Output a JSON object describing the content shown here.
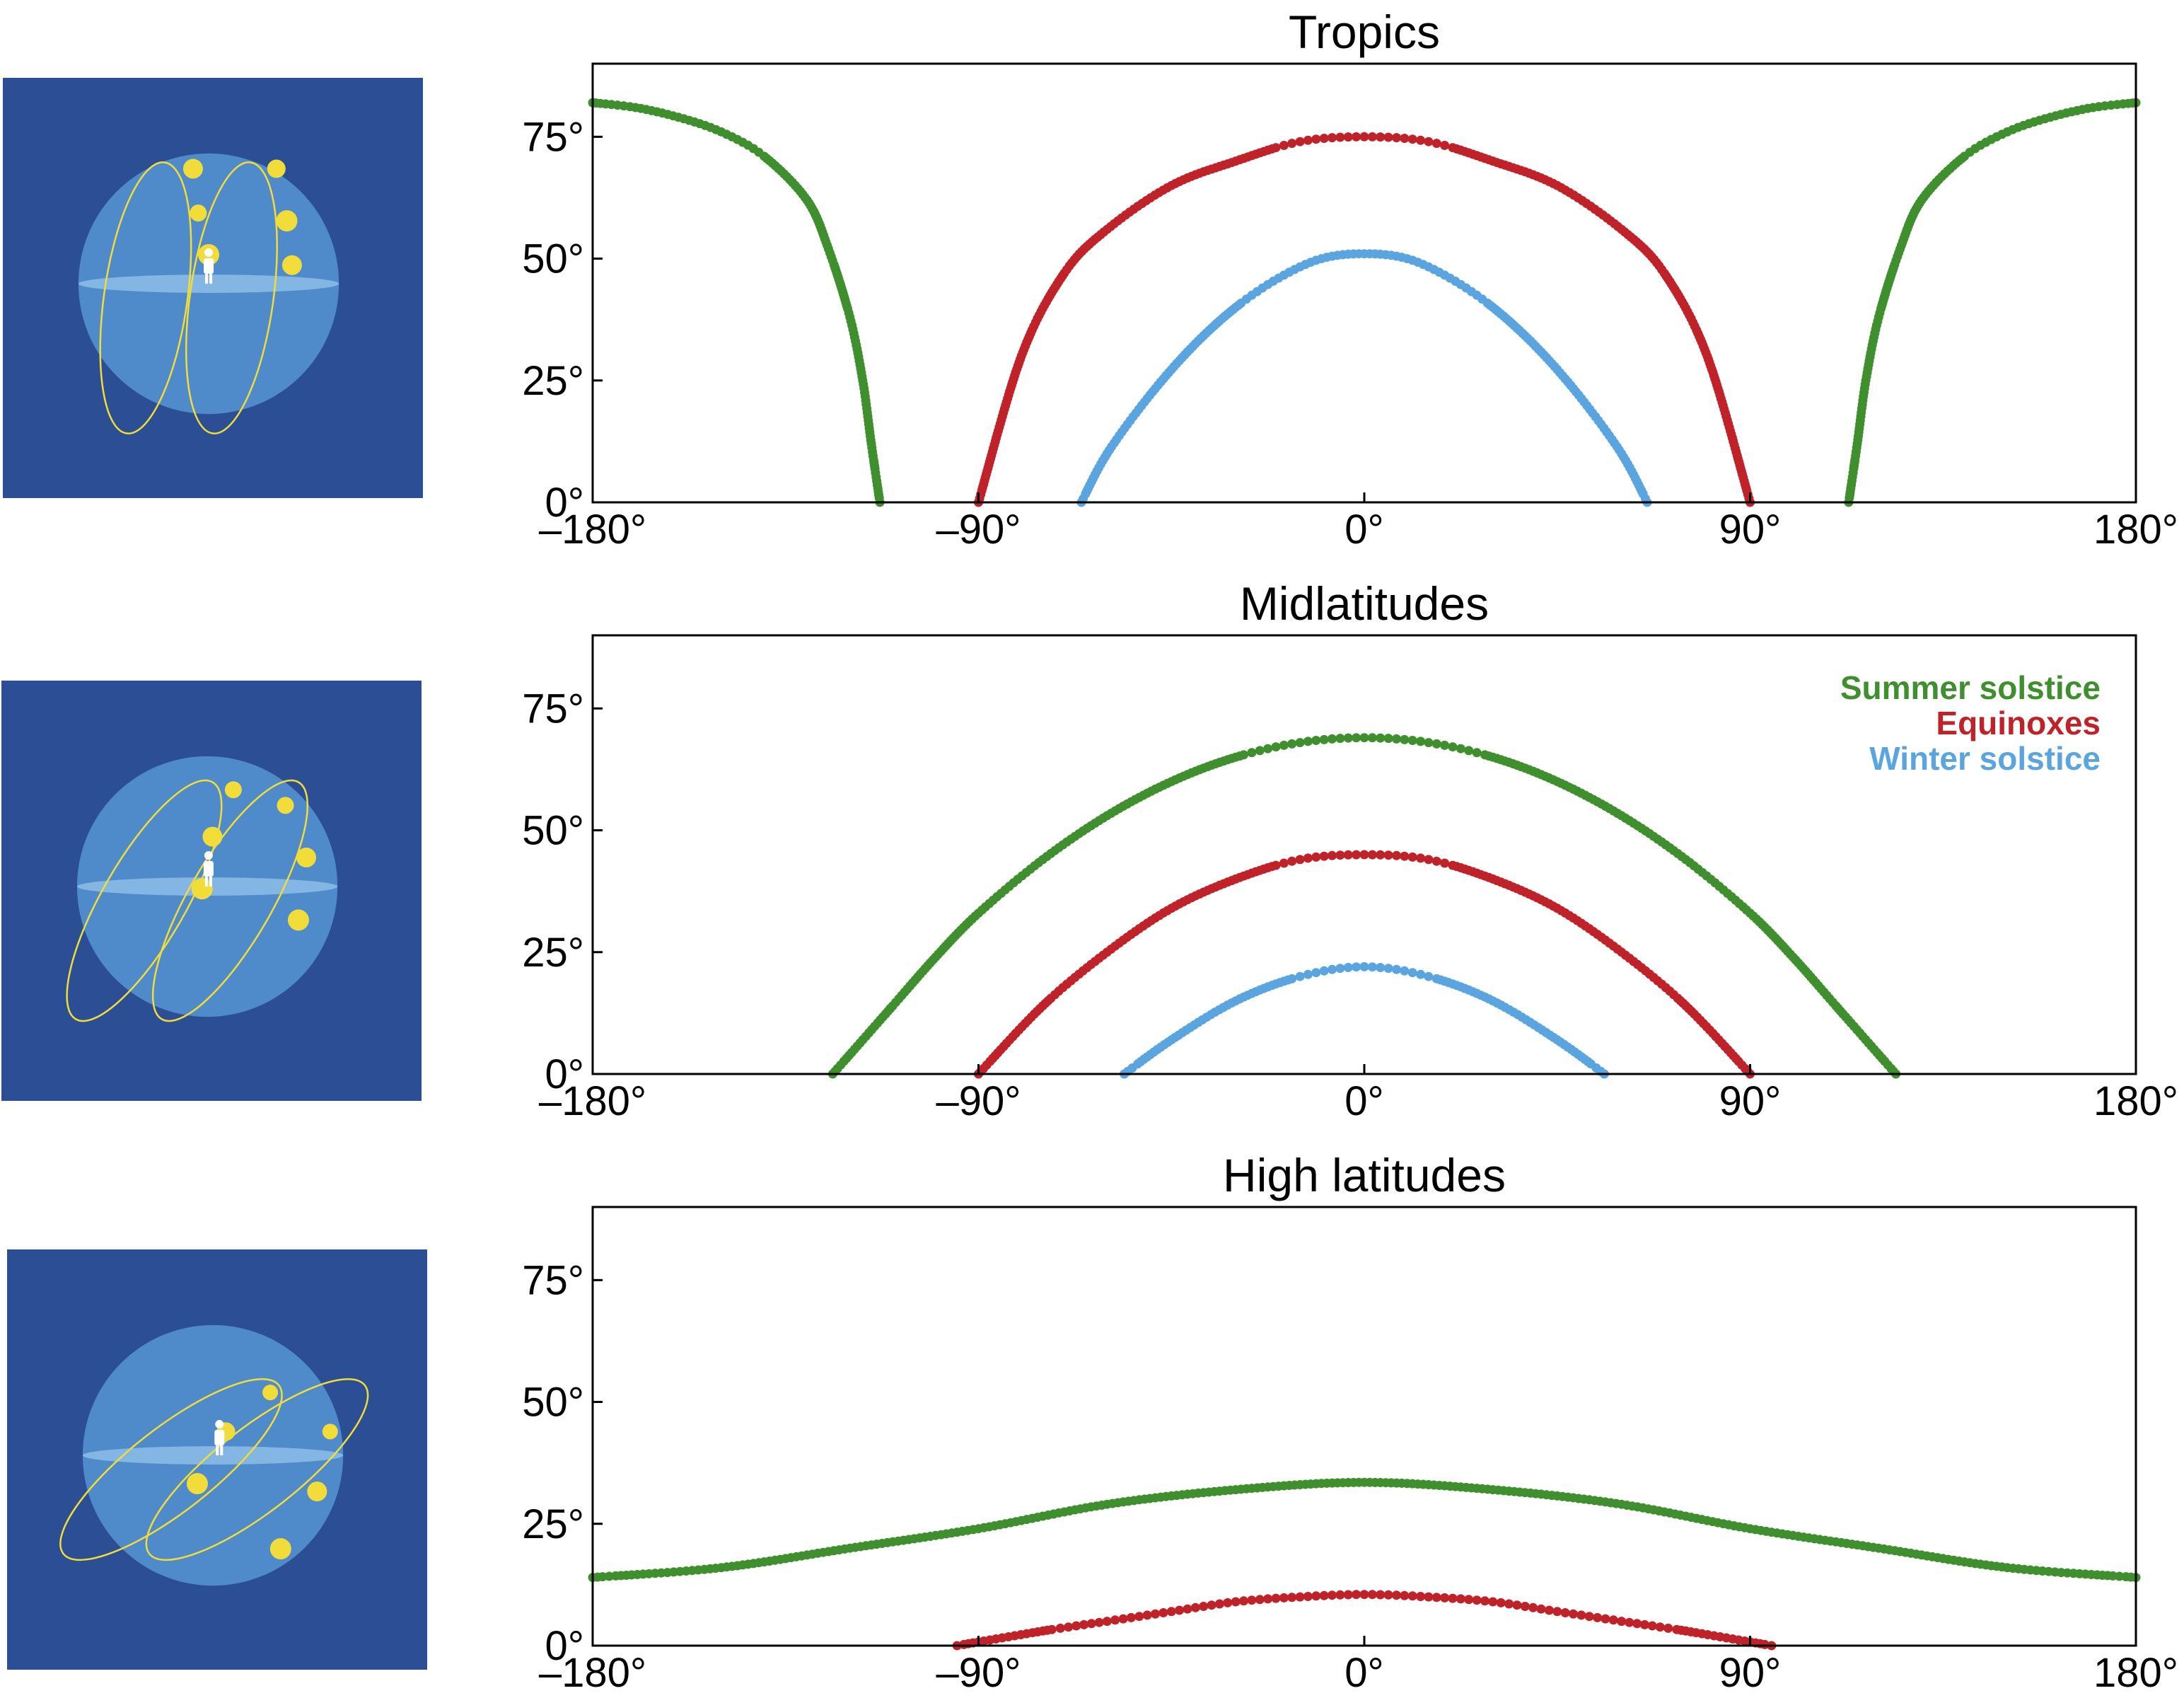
{
  "figure": {
    "background": "#ffffff",
    "thumbnail_colors": {
      "background": "#2c4e95",
      "sphere": "#4f8acb",
      "horizon": "#8dbde8",
      "sun": "#f2dc3a",
      "observer": "#ffffff"
    }
  },
  "legend": {
    "placement": "top-right of Midlatitudes panel",
    "entries": [
      {
        "label": "Summer solstice",
        "color": "#3f8f2e"
      },
      {
        "label": "Equinoxes",
        "color": "#c0222a"
      },
      {
        "label": "Winter solstice",
        "color": "#5aa5e0"
      }
    ]
  },
  "chart_data": [
    {
      "type": "scatter",
      "title": "Tropics",
      "xlabel": "",
      "ylabel": "",
      "xlim": [
        -180,
        180
      ],
      "ylim": [
        0,
        90
      ],
      "xticks": [
        "–180°",
        "–90°",
        "0°",
        "90°",
        "180°"
      ],
      "yticks": [
        "0°",
        "25°",
        "50°",
        "75°"
      ],
      "grid": false,
      "thumbnail": "sky-dome-tropics",
      "series": [
        {
          "color": "#3f8f2e",
          "x": [
            -180,
            -170,
            -160,
            -150,
            -140,
            -130,
            -125,
            -120,
            -117,
            -115,
            -113
          ],
          "y": [
            82,
            81,
            79,
            76,
            71,
            62,
            52,
            38,
            25,
            12,
            0
          ],
          "x2": [
            113,
            115,
            117,
            120,
            125,
            130,
            140,
            150,
            160,
            170,
            180
          ],
          "y2": [
            0,
            12,
            25,
            38,
            52,
            62,
            71,
            76,
            79,
            81,
            82
          ]
        },
        {
          "color": "#c0222a",
          "x": [
            -90,
            -80,
            -70,
            -60,
            -45,
            -30,
            -15,
            0,
            15,
            30,
            45,
            60,
            70,
            80,
            90
          ],
          "y": [
            0,
            30,
            47,
            56,
            65,
            70,
            74,
            75,
            74,
            70,
            65,
            56,
            47,
            30,
            0
          ]
        },
        {
          "color": "#5aa5e0",
          "x": [
            -66,
            -60,
            -50,
            -40,
            -30,
            -20,
            -10,
            0,
            10,
            20,
            30,
            40,
            50,
            60,
            66
          ],
          "y": [
            0,
            10,
            22,
            32,
            40,
            46,
            50,
            51,
            50,
            46,
            40,
            32,
            22,
            10,
            0
          ]
        }
      ]
    },
    {
      "type": "scatter",
      "title": "Midlatitudes",
      "xlabel": "",
      "ylabel": "",
      "xlim": [
        -180,
        180
      ],
      "ylim": [
        0,
        90
      ],
      "xticks": [
        "–180°",
        "–90°",
        "0°",
        "90°",
        "180°"
      ],
      "yticks": [
        "0°",
        "25°",
        "50°",
        "75°"
      ],
      "grid": false,
      "thumbnail": "sky-dome-midlatitudes",
      "series": [
        {
          "name": "Summer solstice",
          "color": "#3f8f2e",
          "x": [
            -124,
            -110,
            -100,
            -90,
            -75,
            -60,
            -45,
            -30,
            -15,
            0,
            15,
            30,
            45,
            60,
            75,
            90,
            100,
            110,
            124
          ],
          "y": [
            0,
            14,
            24,
            33,
            44,
            53,
            60,
            65,
            68,
            69,
            68,
            65,
            60,
            53,
            44,
            33,
            24,
            14,
            0
          ]
        },
        {
          "name": "Equinoxes",
          "color": "#c0222a",
          "x": [
            -90,
            -75,
            -60,
            -45,
            -30,
            -15,
            0,
            15,
            30,
            45,
            60,
            75,
            90
          ],
          "y": [
            0,
            14,
            25,
            34,
            40,
            44,
            45,
            44,
            40,
            34,
            25,
            14,
            0
          ]
        },
        {
          "name": "Winter solstice",
          "color": "#5aa5e0",
          "x": [
            -56,
            -45,
            -30,
            -15,
            0,
            15,
            30,
            45,
            56
          ],
          "y": [
            0,
            7,
            15,
            20,
            22,
            20,
            15,
            7,
            0
          ]
        }
      ]
    },
    {
      "type": "scatter",
      "title": "High latitudes",
      "xlabel": "",
      "ylabel": "",
      "xlim": [
        -180,
        180
      ],
      "ylim": [
        0,
        90
      ],
      "xticks": [
        "–180°",
        "–90°",
        "0°",
        "90°",
        "180°"
      ],
      "yticks": [
        "0°",
        "25°",
        "50°",
        "75°"
      ],
      "grid": false,
      "thumbnail": "sky-dome-high-latitudes",
      "series": [
        {
          "color": "#3f8f2e",
          "x": [
            -180,
            -150,
            -120,
            -90,
            -60,
            -30,
            0,
            30,
            60,
            90,
            120,
            150,
            180
          ],
          "y": [
            14,
            16,
            20,
            24,
            29,
            32,
            33.5,
            32,
            29,
            24,
            20,
            16,
            14
          ]
        },
        {
          "color": "#c0222a",
          "x": [
            -95,
            -75,
            -60,
            -45,
            -30,
            -15,
            0,
            15,
            30,
            45,
            60,
            75,
            95
          ],
          "y": [
            0,
            3,
            5,
            7,
            9,
            10,
            10.5,
            10,
            9,
            7,
            5,
            3,
            0
          ]
        }
      ]
    }
  ]
}
